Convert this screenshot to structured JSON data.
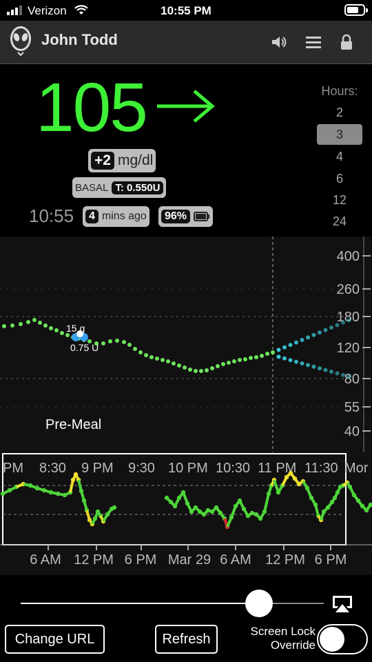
{
  "status_bar": {
    "carrier": "Verizon",
    "time": "10:55 PM"
  },
  "header": {
    "user_name": "John Todd",
    "icons": [
      "speaker-icon",
      "menu-icon",
      "lock-icon"
    ]
  },
  "glucose": {
    "value": "105",
    "trend": "→",
    "delta_value": "+2",
    "delta_unit": "mg/dl",
    "basal_label": "BASAL",
    "basal_value": "T: 0.550U",
    "time": "10:55",
    "ago_number": "4",
    "ago_text": "mins ago",
    "battery_pct": "96%"
  },
  "hours": {
    "label": "Hours:",
    "options": [
      "2",
      "3",
      "4",
      "6",
      "12",
      "24"
    ],
    "selected": "3"
  },
  "colors": {
    "bg_green": "#3ef036",
    "forecast_cyan": "#3ad0e0",
    "dot_green": "#6de55c"
  },
  "main_chart": {
    "y_ticks": [
      "400",
      "260",
      "180",
      "120",
      "80",
      "55",
      "40"
    ],
    "treatment_carbs": "15 g",
    "treatment_insulin": "0.75 U",
    "pre_meal_label": "Pre-Meal"
  },
  "overview": {
    "top_labels": [
      "PM",
      "8:30",
      "9 PM",
      "9:30",
      "10 PM",
      "10:30",
      "11 PM",
      "11:30",
      "Mor"
    ],
    "bottom_labels": [
      "6 AM",
      "12 PM",
      "6 PM",
      "Mar 29",
      "6 AM",
      "12 PM",
      "6 PM"
    ]
  },
  "controls": {
    "slider_level": 0.79,
    "change_url": "Change URL",
    "refresh": "Refresh",
    "screen_lock_line1": "Screen Lock",
    "screen_lock_line2": "Override",
    "toggle_on": false
  }
}
